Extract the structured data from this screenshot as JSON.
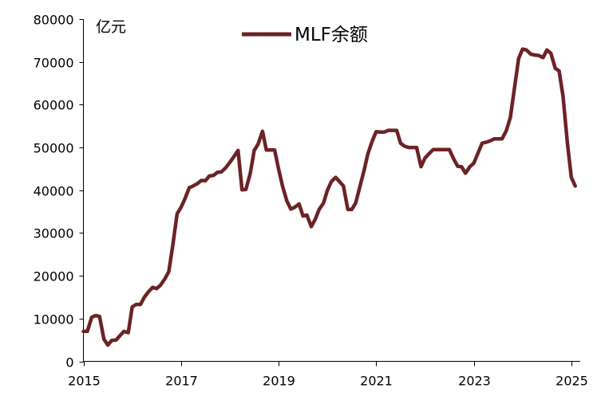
{
  "chart_data": {
    "type": "line",
    "title": "",
    "xlabel": "",
    "ylabel": "亿元",
    "ylim": [
      0,
      80000
    ],
    "xlim": [
      2015,
      2025.15
    ],
    "x_ticks": [
      "2015",
      "2017",
      "2019",
      "2021",
      "2023",
      "2025"
    ],
    "y_ticks": [
      "0",
      "10000",
      "20000",
      "30000",
      "40000",
      "50000",
      "60000",
      "70000",
      "80000"
    ],
    "legend_position": "top-center",
    "grid": false,
    "color": "#6b2326",
    "series": [
      {
        "name": "MLF余额",
        "points": [
          [
            2015.0,
            7000
          ],
          [
            2015.08,
            7000
          ],
          [
            2015.17,
            10300
          ],
          [
            2015.25,
            10700
          ],
          [
            2015.33,
            10500
          ],
          [
            2015.42,
            5200
          ],
          [
            2015.5,
            3800
          ],
          [
            2015.58,
            4900
          ],
          [
            2015.67,
            5000
          ],
          [
            2015.75,
            6000
          ],
          [
            2015.83,
            7000
          ],
          [
            2015.92,
            6700
          ],
          [
            2016.0,
            12700
          ],
          [
            2016.08,
            13300
          ],
          [
            2016.17,
            13300
          ],
          [
            2016.25,
            15000
          ],
          [
            2016.33,
            16200
          ],
          [
            2016.42,
            17300
          ],
          [
            2016.5,
            17000
          ],
          [
            2016.58,
            17800
          ],
          [
            2016.67,
            19300
          ],
          [
            2016.75,
            21000
          ],
          [
            2016.83,
            27000
          ],
          [
            2016.92,
            34500
          ],
          [
            2017.0,
            36000
          ],
          [
            2017.08,
            38000
          ],
          [
            2017.17,
            40600
          ],
          [
            2017.25,
            41000
          ],
          [
            2017.33,
            41500
          ],
          [
            2017.42,
            42300
          ],
          [
            2017.5,
            42200
          ],
          [
            2017.58,
            43300
          ],
          [
            2017.67,
            43500
          ],
          [
            2017.75,
            44200
          ],
          [
            2017.83,
            44300
          ],
          [
            2017.92,
            45300
          ],
          [
            2018.0,
            46500
          ],
          [
            2018.08,
            47800
          ],
          [
            2018.17,
            49300
          ],
          [
            2018.25,
            40100
          ],
          [
            2018.33,
            40200
          ],
          [
            2018.42,
            44000
          ],
          [
            2018.5,
            49300
          ],
          [
            2018.58,
            50800
          ],
          [
            2018.67,
            53800
          ],
          [
            2018.75,
            49400
          ],
          [
            2018.83,
            49400
          ],
          [
            2018.92,
            49400
          ],
          [
            2019.0,
            45000
          ],
          [
            2019.08,
            41000
          ],
          [
            2019.17,
            37500
          ],
          [
            2019.25,
            35600
          ],
          [
            2019.33,
            36000
          ],
          [
            2019.42,
            36800
          ],
          [
            2019.5,
            34000
          ],
          [
            2019.58,
            34200
          ],
          [
            2019.67,
            31500
          ],
          [
            2019.75,
            33200
          ],
          [
            2019.83,
            35500
          ],
          [
            2019.92,
            37000
          ],
          [
            2020.0,
            40000
          ],
          [
            2020.08,
            42000
          ],
          [
            2020.17,
            43000
          ],
          [
            2020.25,
            42000
          ],
          [
            2020.33,
            41000
          ],
          [
            2020.42,
            35500
          ],
          [
            2020.5,
            35500
          ],
          [
            2020.58,
            37000
          ],
          [
            2020.67,
            41000
          ],
          [
            2020.75,
            44500
          ],
          [
            2020.83,
            48500
          ],
          [
            2020.92,
            51500
          ],
          [
            2021.0,
            53700
          ],
          [
            2021.08,
            53600
          ],
          [
            2021.17,
            53600
          ],
          [
            2021.25,
            54000
          ],
          [
            2021.33,
            54000
          ],
          [
            2021.42,
            54000
          ],
          [
            2021.5,
            51000
          ],
          [
            2021.58,
            50300
          ],
          [
            2021.67,
            50000
          ],
          [
            2021.75,
            50000
          ],
          [
            2021.83,
            50000
          ],
          [
            2021.92,
            45500
          ],
          [
            2022.0,
            47500
          ],
          [
            2022.08,
            48500
          ],
          [
            2022.17,
            49500
          ],
          [
            2022.25,
            49500
          ],
          [
            2022.33,
            49500
          ],
          [
            2022.42,
            49500
          ],
          [
            2022.5,
            49500
          ],
          [
            2022.58,
            47500
          ],
          [
            2022.67,
            45600
          ],
          [
            2022.75,
            45500
          ],
          [
            2022.83,
            44000
          ],
          [
            2022.92,
            45500
          ],
          [
            2023.0,
            46300
          ],
          [
            2023.08,
            48500
          ],
          [
            2023.17,
            51000
          ],
          [
            2023.25,
            51200
          ],
          [
            2023.33,
            51500
          ],
          [
            2023.42,
            52000
          ],
          [
            2023.5,
            52000
          ],
          [
            2023.58,
            52000
          ],
          [
            2023.67,
            54000
          ],
          [
            2023.75,
            57000
          ],
          [
            2023.83,
            63500
          ],
          [
            2023.92,
            70800
          ],
          [
            2024.0,
            73000
          ],
          [
            2024.08,
            72800
          ],
          [
            2024.17,
            71800
          ],
          [
            2024.25,
            71600
          ],
          [
            2024.33,
            71500
          ],
          [
            2024.42,
            71000
          ],
          [
            2024.5,
            72800
          ],
          [
            2024.58,
            72000
          ],
          [
            2024.67,
            68500
          ],
          [
            2024.75,
            67900
          ],
          [
            2024.83,
            62000
          ],
          [
            2024.92,
            51000
          ],
          [
            2025.0,
            43000
          ],
          [
            2025.08,
            41000
          ]
        ]
      }
    ]
  }
}
